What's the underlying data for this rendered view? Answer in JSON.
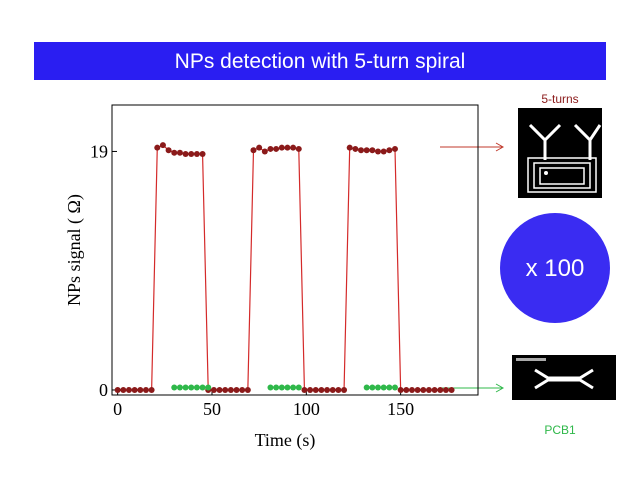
{
  "slide": {
    "title": "NPs detection with 5-turn spiral",
    "top_image_label": "5-turns",
    "circle_label": "x 100",
    "bottom_image_label": "PCB1"
  },
  "chart_data": {
    "type": "line",
    "x_label": "Time (s)",
    "y_label": "NPs signal ( Ω)",
    "x": [
      0,
      3,
      6,
      9,
      12,
      15,
      18,
      21,
      24,
      27,
      30,
      33,
      36,
      39,
      42,
      45,
      48,
      51,
      54,
      57,
      60,
      63,
      66,
      69,
      72,
      75,
      78,
      81,
      84,
      87,
      90,
      93,
      96,
      99,
      102,
      105,
      108,
      111,
      114,
      117,
      120,
      123,
      126,
      129,
      132,
      135,
      138,
      141,
      144,
      147,
      150,
      153,
      156,
      159,
      162,
      165,
      168,
      171,
      174,
      177
    ],
    "series": [
      {
        "color": "#d42a2a",
        "marker_color": "#8b1a1a",
        "values": [
          0,
          0,
          0,
          0,
          0,
          0,
          0,
          19.3,
          19.5,
          19.1,
          18.9,
          18.9,
          18.8,
          18.8,
          18.8,
          18.8,
          0,
          0,
          0,
          0,
          0,
          0,
          0,
          0,
          19.1,
          19.3,
          19.0,
          19.2,
          19.2,
          19.3,
          19.3,
          19.3,
          19.2,
          0,
          0,
          0,
          0,
          0,
          0,
          0,
          0,
          19.3,
          19.2,
          19.1,
          19.1,
          19.1,
          19.0,
          19.0,
          19.1,
          19.2,
          0,
          0,
          0,
          0,
          0,
          0,
          0,
          0,
          0,
          0
        ]
      },
      {
        "color": "#2fb84a",
        "marker_color": "#2fb84a",
        "values": [
          null,
          null,
          null,
          null,
          null,
          null,
          null,
          null,
          null,
          null,
          0.2,
          0.2,
          0.2,
          0.2,
          0.2,
          0.2,
          0.2,
          null,
          null,
          null,
          null,
          null,
          null,
          null,
          null,
          null,
          null,
          0.2,
          0.2,
          0.2,
          0.2,
          0.2,
          0.2,
          null,
          null,
          null,
          null,
          null,
          null,
          null,
          null,
          null,
          null,
          null,
          0.2,
          0.2,
          0.2,
          0.2,
          0.2,
          0.2,
          null,
          null,
          null,
          null,
          null,
          null,
          null,
          null,
          null,
          null
        ]
      }
    ],
    "xlim": [
      -3,
      191
    ],
    "ylim": [
      -0.4,
      22.7
    ],
    "xticks": [
      0,
      50,
      100,
      150
    ],
    "yticks": [
      0,
      19
    ]
  }
}
